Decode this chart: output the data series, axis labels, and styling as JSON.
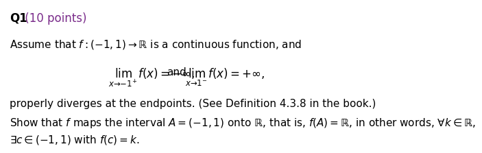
{
  "title_Q": "Q1",
  "title_points": " (10 points)",
  "title_color": "#7B2D8B",
  "title_Q_color": "#000000",
  "body_color": "#000000",
  "background_color": "#ffffff",
  "line1": "Assume that $f: (-1, 1) \\rightarrow \\mathbb{R}$ is a continuous function, and",
  "lim_left": "$\\lim_{x \\to -1^{+}} f(x) = -\\infty,$",
  "lim_and": "and",
  "lim_right": "$\\lim_{x \\to 1^{-}} f(x) = +\\infty,$",
  "line3": "properly diverges at the endpoints. (See Definition 4.3.8 in the book.)",
  "line4": "Show that $f$ maps the interval $A = (-1, 1)$ onto $\\mathbb{R}$, that is, $f(A) = \\mathbb{R}$, in other words, $\\forall k \\in \\mathbb{R}$,",
  "line5": "$\\exists c \\in (-1, 1)$ with $f(c) = k$.",
  "fontsize": 11,
  "title_fontsize": 12
}
